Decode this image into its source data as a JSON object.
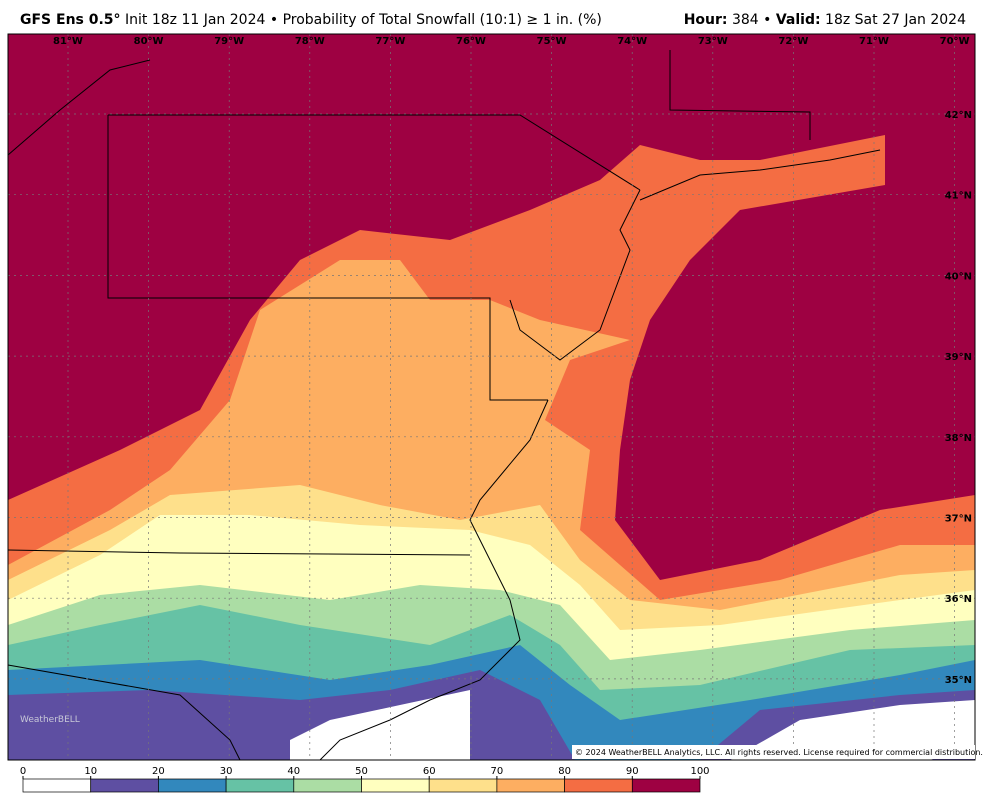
{
  "header": {
    "model": "GFS Ens 0.5°",
    "init": "Init 18z 11 Jan 2024",
    "separator": "•",
    "product": "Probability of Total Snowfall (10:1) ≥ 1 in. (%)",
    "hour_label": "Hour:",
    "hour": "384",
    "valid_label": "Valid:",
    "valid": "18z Sat 27 Jan 2024"
  },
  "map": {
    "lon_labels": [
      "81°W",
      "80°W",
      "79°W",
      "78°W",
      "77°W",
      "76°W",
      "75°W",
      "74°W",
      "73°W",
      "72°W",
      "71°W",
      "70°W"
    ],
    "lat_labels": [
      "42°N",
      "41°N",
      "40°N",
      "39°N",
      "38°N",
      "37°N",
      "36°N",
      "35°N"
    ],
    "watermark": "WeatherBELL",
    "copyright": "© 2024 WeatherBELL Analytics, LLC. All rights reserved. License required for commercial distribution."
  },
  "colorbar": {
    "ticks": [
      0,
      10,
      20,
      30,
      40,
      50,
      60,
      70,
      80,
      90,
      100
    ],
    "colors": [
      "#ffffff",
      "#5e4fa2",
      "#3288bd",
      "#66c2a5",
      "#abdda4",
      "#ffffbf",
      "#fee08b",
      "#fdae61",
      "#f46d43",
      "#9e0142"
    ]
  }
}
